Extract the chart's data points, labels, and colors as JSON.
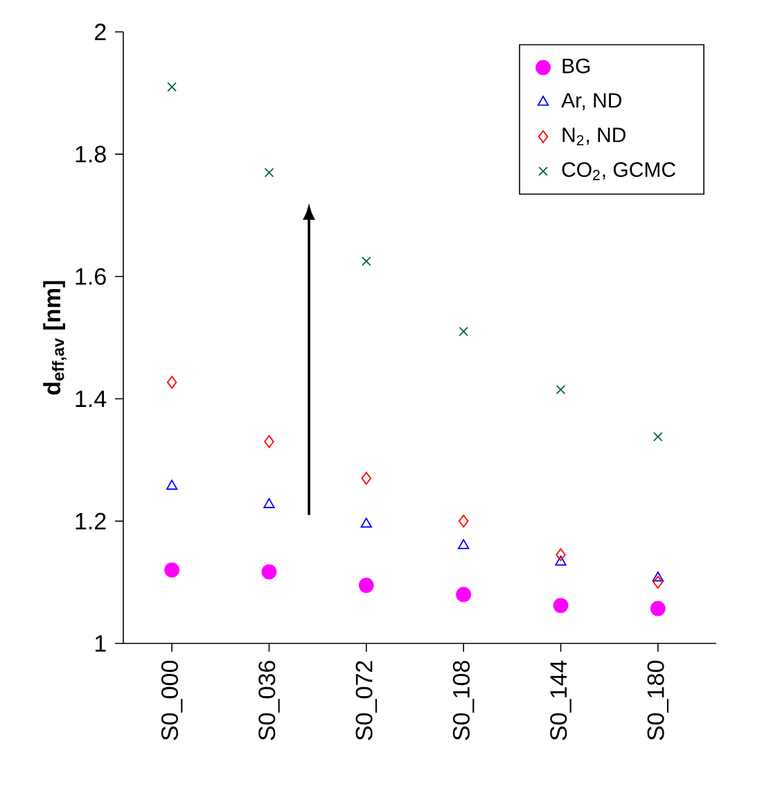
{
  "chart_data": {
    "type": "scatter",
    "ylabel": "d$_{eff,av}$ [nm]",
    "categories": [
      "S0_000",
      "S0_036",
      "S0_072",
      "S0_108",
      "S0_144",
      "S0_180"
    ],
    "series": [
      {
        "name": "BG",
        "color": "#ff00ff",
        "marker": "circle",
        "values": [
          1.12,
          1.117,
          1.095,
          1.08,
          1.062,
          1.057
        ]
      },
      {
        "name": "Ar, ND",
        "color": "#0000ff",
        "marker": "triangle",
        "values": [
          1.257,
          1.227,
          1.195,
          1.16,
          1.133,
          1.107
        ]
      },
      {
        "name": "N$_{2}$, ND",
        "color": "#ff0000",
        "marker": "diamond",
        "values": [
          1.427,
          1.33,
          1.27,
          1.2,
          1.145,
          1.1
        ]
      },
      {
        "name": "CO$_{2}$, GCMC",
        "color": "#006633",
        "marker": "cross",
        "values": [
          1.91,
          1.77,
          1.625,
          1.51,
          1.415,
          1.338
        ]
      }
    ],
    "ylim": [
      1,
      2
    ],
    "yticks": [
      1,
      1.2,
      1.4,
      1.6,
      1.8,
      2
    ],
    "legend": "top right",
    "grid": false
  }
}
